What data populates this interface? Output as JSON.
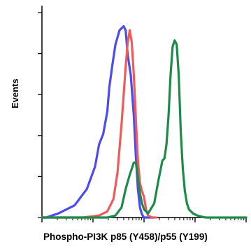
{
  "chart_data": {
    "type": "line",
    "title": "",
    "xlabel": "Phospho-PI3K p85 (Y458)/p55 (Y199)",
    "ylabel": "Events",
    "x_scale": "log",
    "xlim": [
      0,
      1
    ],
    "ylim": [
      0,
      1
    ],
    "grid": false,
    "legend": "none",
    "series": [
      {
        "color": "#4b4bf0",
        "x": [
          0.0,
          0.02,
          0.08,
          0.16,
          0.22,
          0.26,
          0.28,
          0.3,
          0.32,
          0.33,
          0.345,
          0.36,
          0.38,
          0.4,
          0.41,
          0.42,
          0.435,
          0.45,
          0.46,
          0.47,
          0.48,
          0.49,
          0.5,
          0.52,
          0.55
        ],
        "y": [
          0.0,
          0.0,
          0.02,
          0.06,
          0.14,
          0.25,
          0.36,
          0.41,
          0.52,
          0.64,
          0.75,
          0.85,
          0.92,
          0.94,
          0.92,
          0.8,
          0.7,
          0.5,
          0.3,
          0.14,
          0.05,
          0.015,
          0.0,
          0.0,
          0.0
        ]
      },
      {
        "color": "#f05a5a",
        "x": [
          0.0,
          0.2,
          0.28,
          0.32,
          0.35,
          0.37,
          0.38,
          0.39,
          0.4,
          0.41,
          0.42,
          0.43,
          0.44,
          0.45,
          0.46,
          0.47,
          0.48,
          0.49,
          0.5,
          0.51,
          0.52,
          0.54,
          0.56
        ],
        "y": [
          0.0,
          0.0,
          0.01,
          0.03,
          0.09,
          0.22,
          0.34,
          0.46,
          0.6,
          0.74,
          0.86,
          0.92,
          0.86,
          0.7,
          0.48,
          0.28,
          0.17,
          0.13,
          0.1,
          0.04,
          0.01,
          0.0,
          0.0
        ]
      },
      {
        "color": "#1e8a4a",
        "x": [
          0.0,
          0.32,
          0.36,
          0.39,
          0.41,
          0.43,
          0.45,
          0.46,
          0.47,
          0.48,
          0.49,
          0.5,
          0.52,
          0.55,
          0.57,
          0.59,
          0.6,
          0.61,
          0.62,
          0.63,
          0.64,
          0.65,
          0.66,
          0.67,
          0.68,
          0.69,
          0.7,
          0.71,
          0.72,
          0.73,
          0.74,
          0.76,
          0.8,
          1.0
        ],
        "y": [
          0.0,
          0.0,
          0.01,
          0.05,
          0.14,
          0.21,
          0.27,
          0.27,
          0.2,
          0.12,
          0.07,
          0.04,
          0.02,
          0.07,
          0.18,
          0.28,
          0.29,
          0.36,
          0.5,
          0.7,
          0.84,
          0.87,
          0.85,
          0.7,
          0.42,
          0.24,
          0.13,
          0.07,
          0.04,
          0.03,
          0.02,
          0.01,
          0.0,
          0.0
        ]
      }
    ]
  }
}
